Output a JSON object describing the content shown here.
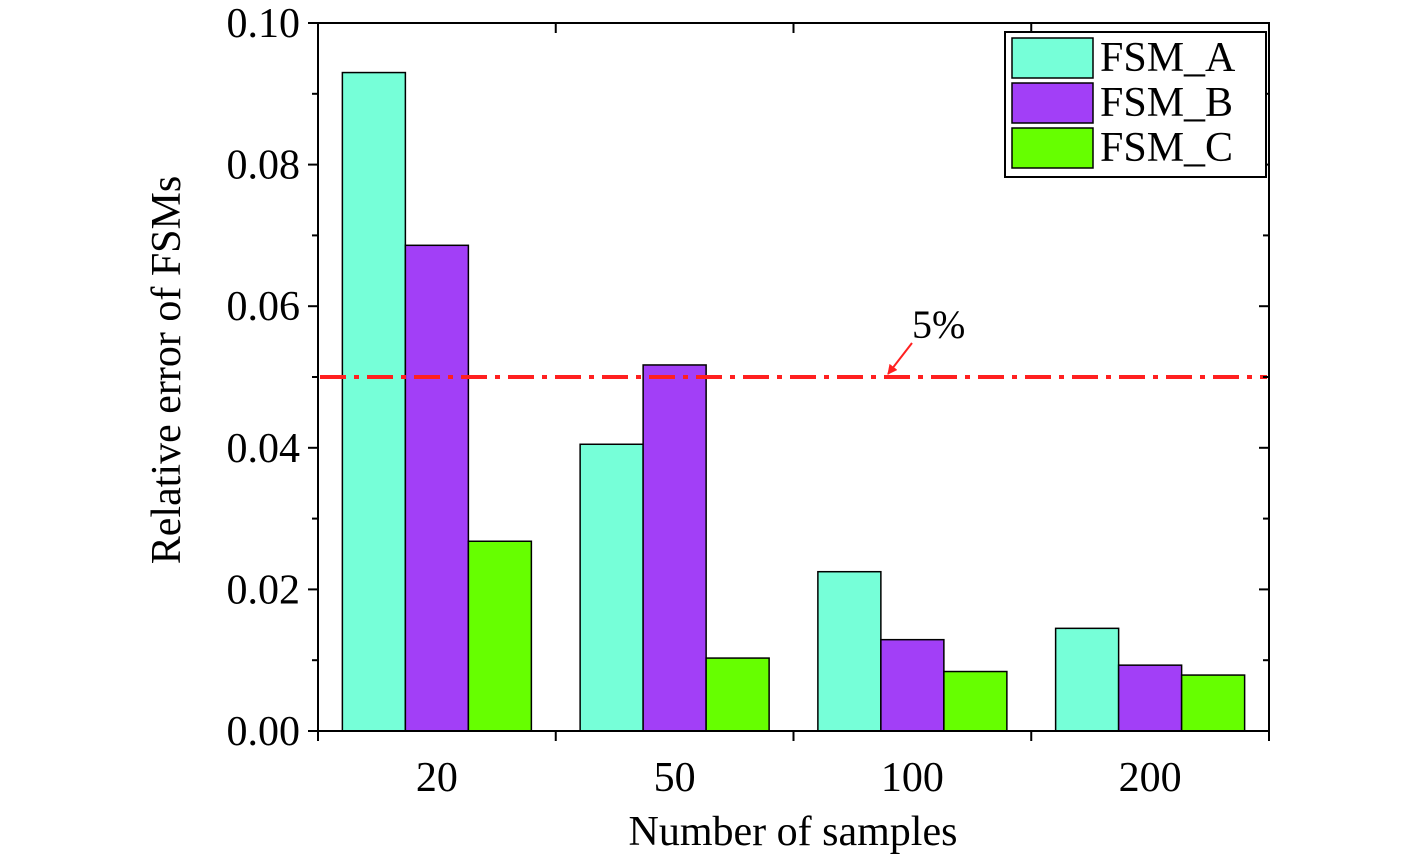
{
  "chart_data": {
    "type": "bar",
    "xlabel": "Number of samples",
    "ylabel": "Relative error of  FSMs",
    "categories": [
      "20",
      "50",
      "100",
      "200"
    ],
    "ylim": [
      0,
      0.1
    ],
    "yticks": [
      0.0,
      0.02,
      0.04,
      0.06,
      0.08,
      0.1
    ],
    "ytick_labels": [
      "0.00",
      "0.02",
      "0.04",
      "0.06",
      "0.08",
      "0.10"
    ],
    "series": [
      {
        "name": "FSM_A",
        "color": "#76ffd8",
        "values": [
          0.093,
          0.0405,
          0.0225,
          0.0145
        ]
      },
      {
        "name": "FSM_B",
        "color": "#a23ff7",
        "values": [
          0.0686,
          0.0517,
          0.0129,
          0.0093
        ]
      },
      {
        "name": "FSM_C",
        "color": "#66ff00",
        "values": [
          0.0268,
          0.0103,
          0.0084,
          0.0079
        ]
      }
    ],
    "legend_position": "top-right",
    "reference_line": {
      "value": 0.05,
      "label": "5%",
      "color": "#ff2020",
      "style": "dash-dot"
    }
  }
}
